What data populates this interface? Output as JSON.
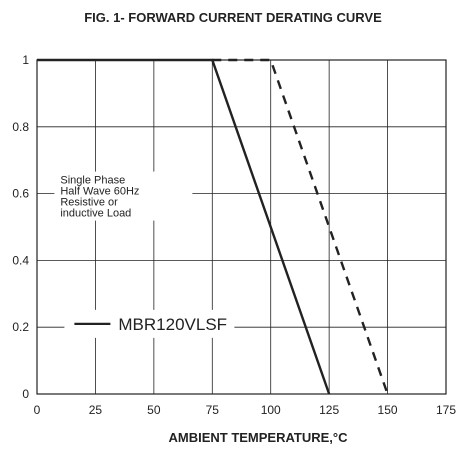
{
  "chart_data": {
    "type": "line",
    "title": "FIG. 1- FORWARD CURRENT DERATING CURVE",
    "xlabel": "AMBIENT TEMPERATURE,°C",
    "ylabel": "",
    "xlim": [
      0,
      175
    ],
    "ylim": [
      0,
      1
    ],
    "xticks": [
      0,
      25,
      50,
      75,
      100,
      125,
      150,
      175
    ],
    "xtick_labels": [
      "0",
      "25",
      "50",
      "75",
      "100",
      "125",
      "150",
      "175"
    ],
    "yticks": [
      0,
      0.2,
      0.4,
      0.6,
      0.8,
      1
    ],
    "ytick_labels": [
      "0",
      "0.2",
      "0.4",
      "0.6",
      "0.8",
      "1"
    ],
    "grid": true,
    "series": [
      {
        "name": "MBR120VLSF",
        "style": "solid",
        "color": "#222222",
        "x": [
          0,
          75,
          125
        ],
        "y": [
          1,
          1,
          0
        ]
      },
      {
        "name": "",
        "style": "dashed",
        "color": "#222222",
        "x": [
          75,
          100,
          150
        ],
        "y": [
          1,
          1,
          0
        ]
      }
    ],
    "annotation": {
      "lines": [
        "Single Phase",
        "Half Wave 60Hz",
        "Resistive or",
        "inductive Load"
      ],
      "x": 10,
      "y": 0.63
    },
    "legend": {
      "label": "MBR120VLSF",
      "x": 16,
      "y": 0.21
    }
  }
}
